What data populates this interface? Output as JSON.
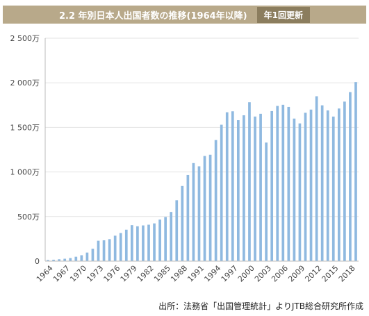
{
  "header": {
    "title": "2.2 年別日本人出国者数の推移(1964年以降)",
    "badge": "年1回更新"
  },
  "source": "出所：法務省「出国管理統計」よりJTB総合研究所作成",
  "colors": {
    "bar": "#8fb9e0",
    "header_bg": "#b8a98a",
    "badge_bg": "#8b7d5e"
  },
  "chart_data": {
    "type": "bar",
    "title": "",
    "xlabel": "",
    "ylabel": "",
    "ylim": [
      0,
      25000000
    ],
    "y_ticks": [
      0,
      5000000,
      10000000,
      15000000,
      20000000,
      25000000
    ],
    "y_tick_labels": [
      "0",
      "500万",
      "1 000万",
      "1 500万",
      "2 000万",
      "2 500万"
    ],
    "x_tick_labels": [
      "1964",
      "1967",
      "1970",
      "1973",
      "1976",
      "1979",
      "1982",
      "1985",
      "1988",
      "1991",
      "1994",
      "1997",
      "2000",
      "2003",
      "2006",
      "2009",
      "2012",
      "2015",
      "2018"
    ],
    "grid": true,
    "categories": [
      "1964",
      "1965",
      "1966",
      "1967",
      "1968",
      "1969",
      "1970",
      "1971",
      "1972",
      "1973",
      "1974",
      "1975",
      "1976",
      "1977",
      "1978",
      "1979",
      "1980",
      "1981",
      "1982",
      "1983",
      "1984",
      "1985",
      "1986",
      "1987",
      "1988",
      "1989",
      "1990",
      "1991",
      "1992",
      "1993",
      "1994",
      "1995",
      "1996",
      "1997",
      "1998",
      "1999",
      "2000",
      "2001",
      "2002",
      "2003",
      "2004",
      "2005",
      "2006",
      "2007",
      "2008",
      "2009",
      "2010",
      "2011",
      "2012",
      "2013",
      "2014",
      "2015",
      "2016",
      "2017",
      "2018",
      "2019"
    ],
    "values": [
      128000,
      159000,
      212000,
      267000,
      344000,
      493000,
      663000,
      961000,
      1392000,
      2289000,
      2336000,
      2466000,
      2853000,
      3151000,
      3525000,
      4038000,
      3909000,
      4006000,
      4086000,
      4232000,
      4659000,
      4948000,
      5516000,
      6829000,
      8427000,
      9662000,
      10997000,
      10634000,
      11791000,
      11934000,
      13579000,
      15298000,
      16695000,
      16803000,
      15806000,
      16358000,
      17819000,
      16216000,
      16523000,
      13296000,
      16831000,
      17404000,
      17535000,
      17295000,
      15987000,
      15446000,
      16637000,
      16994000,
      18491000,
      17473000,
      16903000,
      16213000,
      17116000,
      17889000,
      18954000,
      20081000
    ]
  }
}
